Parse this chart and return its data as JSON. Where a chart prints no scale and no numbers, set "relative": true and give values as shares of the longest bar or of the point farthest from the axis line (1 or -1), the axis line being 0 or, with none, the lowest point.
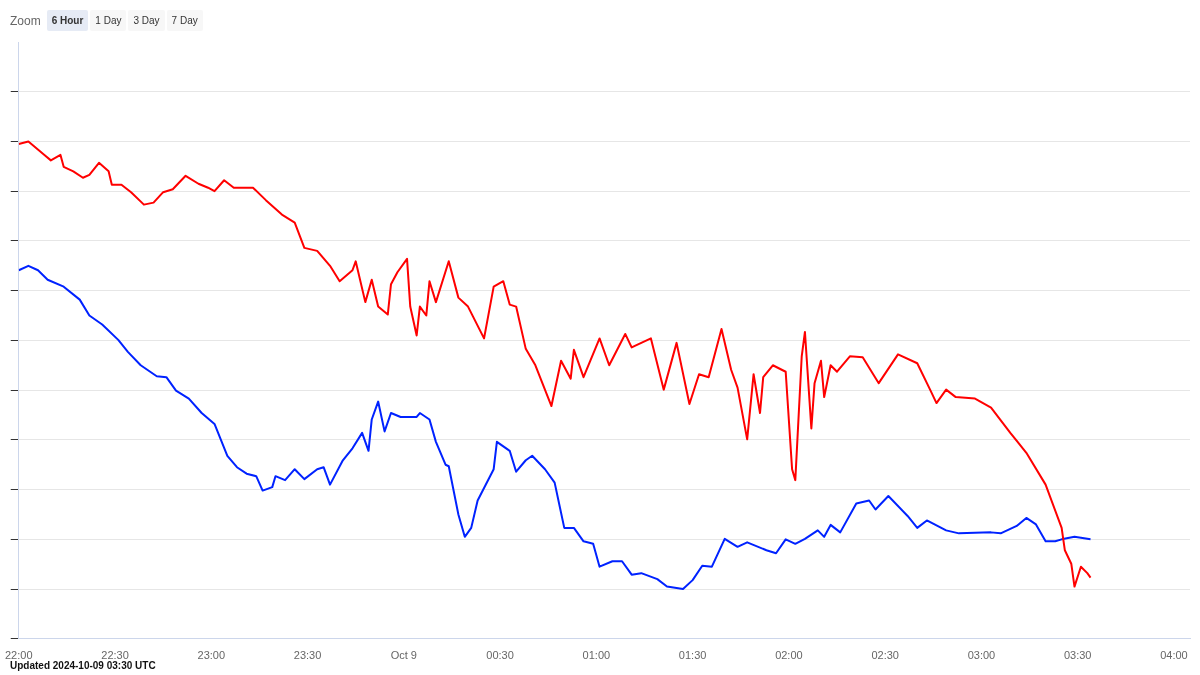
{
  "chart_data": {
    "type": "line",
    "relative": true,
    "grid": "y",
    "legend": false,
    "marker": "none",
    "line_style": "solid",
    "xlim": [
      "2024-10-08T22:00",
      "2024-10-09T04:05"
    ],
    "xticks": [
      {
        "value": "2024-10-08T22:00",
        "label": "22:00"
      },
      {
        "value": "2024-10-08T22:30",
        "label": "22:30"
      },
      {
        "value": "2024-10-08T23:00",
        "label": "23:00"
      },
      {
        "value": "2024-10-08T23:30",
        "label": "23:30"
      },
      {
        "value": "2024-10-09T00:00",
        "label": "Oct 9"
      },
      {
        "value": "2024-10-09T00:30",
        "label": "00:30"
      },
      {
        "value": "2024-10-09T01:00",
        "label": "01:00"
      },
      {
        "value": "2024-10-09T01:30",
        "label": "01:30"
      },
      {
        "value": "2024-10-09T02:00",
        "label": "02:00"
      },
      {
        "value": "2024-10-09T02:30",
        "label": "02:30"
      },
      {
        "value": "2024-10-09T03:00",
        "label": "03:00"
      },
      {
        "value": "2024-10-09T03:30",
        "label": "03:30"
      },
      {
        "value": "2024-10-09T04:00",
        "label": "04:00"
      }
    ],
    "annotations": [
      "Zoom",
      "6 Hour",
      "1 Day",
      "3 Day",
      "7 Day",
      "Updated 2024-10-09 03:30 UTC"
    ],
    "series": [
      {
        "color": "#ff0000",
        "x": [
          "2024-10-08T22:00",
          "2024-10-08T22:03",
          "2024-10-08T22:08",
          "2024-10-08T22:10",
          "2024-10-08T22:13",
          "2024-10-08T22:14",
          "2024-10-08T22:17",
          "2024-10-08T22:20",
          "2024-10-08T22:22",
          "2024-10-08T22:25",
          "2024-10-08T22:28",
          "2024-10-08T22:29",
          "2024-10-08T22:32",
          "2024-10-08T22:35",
          "2024-10-08T22:39",
          "2024-10-08T22:42",
          "2024-10-08T22:45",
          "2024-10-08T22:48",
          "2024-10-08T22:52",
          "2024-10-08T22:56",
          "2024-10-08T22:59",
          "2024-10-08T23:01",
          "2024-10-08T23:04",
          "2024-10-08T23:07",
          "2024-10-08T23:13",
          "2024-10-08T23:17",
          "2024-10-08T23:22",
          "2024-10-08T23:26",
          "2024-10-08T23:29",
          "2024-10-08T23:33",
          "2024-10-08T23:37",
          "2024-10-08T23:40",
          "2024-10-08T23:44",
          "2024-10-08T23:45",
          "2024-10-08T23:48",
          "2024-10-08T23:50",
          "2024-10-08T23:52",
          "2024-10-08T23:55",
          "2024-10-08T23:56",
          "2024-10-08T23:58",
          "2024-10-09T00:01",
          "2024-10-09T00:02",
          "2024-10-09T00:04",
          "2024-10-09T00:05",
          "2024-10-09T00:07",
          "2024-10-09T00:08",
          "2024-10-09T00:10",
          "2024-10-09T00:14",
          "2024-10-09T00:17",
          "2024-10-09T00:20",
          "2024-10-09T00:25",
          "2024-10-09T00:28",
          "2024-10-09T00:31",
          "2024-10-09T00:33",
          "2024-10-09T00:35",
          "2024-10-09T00:38",
          "2024-10-09T00:41",
          "2024-10-09T00:46",
          "2024-10-09T00:49",
          "2024-10-09T00:52",
          "2024-10-09T00:53",
          "2024-10-09T00:56",
          "2024-10-09T01:01",
          "2024-10-09T01:04",
          "2024-10-09T01:09",
          "2024-10-09T01:11",
          "2024-10-09T01:17",
          "2024-10-09T01:21",
          "2024-10-09T01:25",
          "2024-10-09T01:29",
          "2024-10-09T01:32",
          "2024-10-09T01:35",
          "2024-10-09T01:39",
          "2024-10-09T01:42",
          "2024-10-09T01:44",
          "2024-10-09T01:47",
          "2024-10-09T01:49",
          "2024-10-09T01:51",
          "2024-10-09T01:52",
          "2024-10-09T01:55",
          "2024-10-09T01:59",
          "2024-10-09T02:01",
          "2024-10-09T02:02",
          "2024-10-09T02:04",
          "2024-10-09T02:05",
          "2024-10-09T02:07",
          "2024-10-09T02:08",
          "2024-10-09T02:10",
          "2024-10-09T02:11",
          "2024-10-09T02:13",
          "2024-10-09T02:15",
          "2024-10-09T02:19",
          "2024-10-09T02:23",
          "2024-10-09T02:28",
          "2024-10-09T02:34",
          "2024-10-09T02:40",
          "2024-10-09T02:44",
          "2024-10-09T02:46",
          "2024-10-09T02:49",
          "2024-10-09T02:52",
          "2024-10-09T02:58",
          "2024-10-09T03:03",
          "2024-10-09T03:09",
          "2024-10-09T03:14",
          "2024-10-09T03:20",
          "2024-10-09T03:25",
          "2024-10-09T03:26",
          "2024-10-09T03:28",
          "2024-10-09T03:29",
          "2024-10-09T03:31",
          "2024-10-09T03:33",
          "2024-10-09T03:34"
        ],
        "values": [
          0.995,
          1.0,
          0.973,
          0.962,
          0.973,
          0.949,
          0.94,
          0.927,
          0.933,
          0.957,
          0.94,
          0.913,
          0.913,
          0.898,
          0.873,
          0.877,
          0.898,
          0.904,
          0.931,
          0.915,
          0.907,
          0.9,
          0.922,
          0.907,
          0.907,
          0.882,
          0.853,
          0.837,
          0.786,
          0.78,
          0.75,
          0.719,
          0.741,
          0.759,
          0.677,
          0.722,
          0.668,
          0.652,
          0.713,
          0.737,
          0.764,
          0.668,
          0.61,
          0.668,
          0.65,
          0.719,
          0.677,
          0.759,
          0.686,
          0.668,
          0.604,
          0.708,
          0.719,
          0.672,
          0.668,
          0.583,
          0.55,
          0.468,
          0.559,
          0.523,
          0.581,
          0.526,
          0.604,
          0.55,
          0.613,
          0.586,
          0.604,
          0.501,
          0.595,
          0.472,
          0.532,
          0.526,
          0.623,
          0.541,
          0.505,
          0.401,
          0.532,
          0.454,
          0.526,
          0.55,
          0.537,
          0.341,
          0.319,
          0.568,
          0.617,
          0.423,
          0.514,
          0.559,
          0.486,
          0.55,
          0.537,
          0.568,
          0.566,
          0.514,
          0.572,
          0.554,
          0.501,
          0.474,
          0.501,
          0.486,
          0.483,
          0.465,
          0.414,
          0.374,
          0.31,
          0.223,
          0.178,
          0.151,
          0.105,
          0.145,
          0.132,
          0.123
        ]
      },
      {
        "color": "#0022ff",
        "x": [
          "2024-10-08T22:00",
          "2024-10-08T22:03",
          "2024-10-08T22:06",
          "2024-10-08T22:09",
          "2024-10-08T22:14",
          "2024-10-08T22:19",
          "2024-10-08T22:22",
          "2024-10-08T22:26",
          "2024-10-08T22:31",
          "2024-10-08T22:34",
          "2024-10-08T22:38",
          "2024-10-08T22:43",
          "2024-10-08T22:46",
          "2024-10-08T22:49",
          "2024-10-08T22:53",
          "2024-10-08T22:57",
          "2024-10-08T23:01",
          "2024-10-08T23:05",
          "2024-10-08T23:08",
          "2024-10-08T23:11",
          "2024-10-08T23:14",
          "2024-10-08T23:16",
          "2024-10-08T23:19",
          "2024-10-08T23:20",
          "2024-10-08T23:23",
          "2024-10-08T23:26",
          "2024-10-08T23:29",
          "2024-10-08T23:33",
          "2024-10-08T23:35",
          "2024-10-08T23:37",
          "2024-10-08T23:41",
          "2024-10-08T23:44",
          "2024-10-08T23:47",
          "2024-10-08T23:49",
          "2024-10-08T23:50",
          "2024-10-08T23:52",
          "2024-10-08T23:54",
          "2024-10-08T23:56",
          "2024-10-08T23:59",
          "2024-10-09T00:04",
          "2024-10-09T00:05",
          "2024-10-09T00:08",
          "2024-10-09T00:10",
          "2024-10-09T00:13",
          "2024-10-09T00:14",
          "2024-10-09T00:17",
          "2024-10-09T00:19",
          "2024-10-09T00:21",
          "2024-10-09T00:23",
          "2024-10-09T00:28",
          "2024-10-09T00:29",
          "2024-10-09T00:33",
          "2024-10-09T00:35",
          "2024-10-09T00:38",
          "2024-10-09T00:40",
          "2024-10-09T00:44",
          "2024-10-09T00:47",
          "2024-10-09T00:50",
          "2024-10-09T00:53",
          "2024-10-09T00:56",
          "2024-10-09T00:59",
          "2024-10-09T01:01",
          "2024-10-09T01:05",
          "2024-10-09T01:08",
          "2024-10-09T01:11",
          "2024-10-09T01:14",
          "2024-10-09T01:19",
          "2024-10-09T01:22",
          "2024-10-09T01:27",
          "2024-10-09T01:30",
          "2024-10-09T01:33",
          "2024-10-09T01:36",
          "2024-10-09T01:40",
          "2024-10-09T01:44",
          "2024-10-09T01:47",
          "2024-10-09T01:53",
          "2024-10-09T01:56",
          "2024-10-09T01:59",
          "2024-10-09T02:02",
          "2024-10-09T02:05",
          "2024-10-09T02:09",
          "2024-10-09T02:11",
          "2024-10-09T02:13",
          "2024-10-09T02:16",
          "2024-10-09T02:21",
          "2024-10-09T02:25",
          "2024-10-09T02:27",
          "2024-10-09T02:31",
          "2024-10-09T02:37",
          "2024-10-09T02:40",
          "2024-10-09T02:43",
          "2024-10-09T02:49",
          "2024-10-09T02:53",
          "2024-10-09T03:03",
          "2024-10-09T03:06",
          "2024-10-09T03:11",
          "2024-10-09T03:14",
          "2024-10-09T03:17",
          "2024-10-09T03:20",
          "2024-10-09T03:23",
          "2024-10-09T03:25",
          "2024-10-09T03:29",
          "2024-10-09T03:34"
        ],
        "values": [
          0.741,
          0.75,
          0.741,
          0.722,
          0.708,
          0.682,
          0.65,
          0.632,
          0.601,
          0.577,
          0.55,
          0.528,
          0.526,
          0.499,
          0.483,
          0.454,
          0.432,
          0.368,
          0.345,
          0.332,
          0.327,
          0.298,
          0.305,
          0.327,
          0.319,
          0.341,
          0.321,
          0.341,
          0.345,
          0.31,
          0.359,
          0.383,
          0.414,
          0.378,
          0.441,
          0.477,
          0.417,
          0.454,
          0.446,
          0.446,
          0.454,
          0.441,
          0.396,
          0.35,
          0.347,
          0.25,
          0.205,
          0.223,
          0.278,
          0.341,
          0.396,
          0.378,
          0.336,
          0.359,
          0.368,
          0.341,
          0.314,
          0.223,
          0.223,
          0.196,
          0.191,
          0.145,
          0.156,
          0.156,
          0.129,
          0.132,
          0.12,
          0.105,
          0.1,
          0.118,
          0.147,
          0.145,
          0.201,
          0.185,
          0.194,
          0.178,
          0.172,
          0.2,
          0.191,
          0.201,
          0.218,
          0.205,
          0.229,
          0.214,
          0.272,
          0.278,
          0.26,
          0.287,
          0.247,
          0.223,
          0.238,
          0.218,
          0.212,
          0.214,
          0.212,
          0.227,
          0.243,
          0.23,
          0.196,
          0.196,
          0.2,
          0.205,
          0.2
        ]
      }
    ]
  }
}
